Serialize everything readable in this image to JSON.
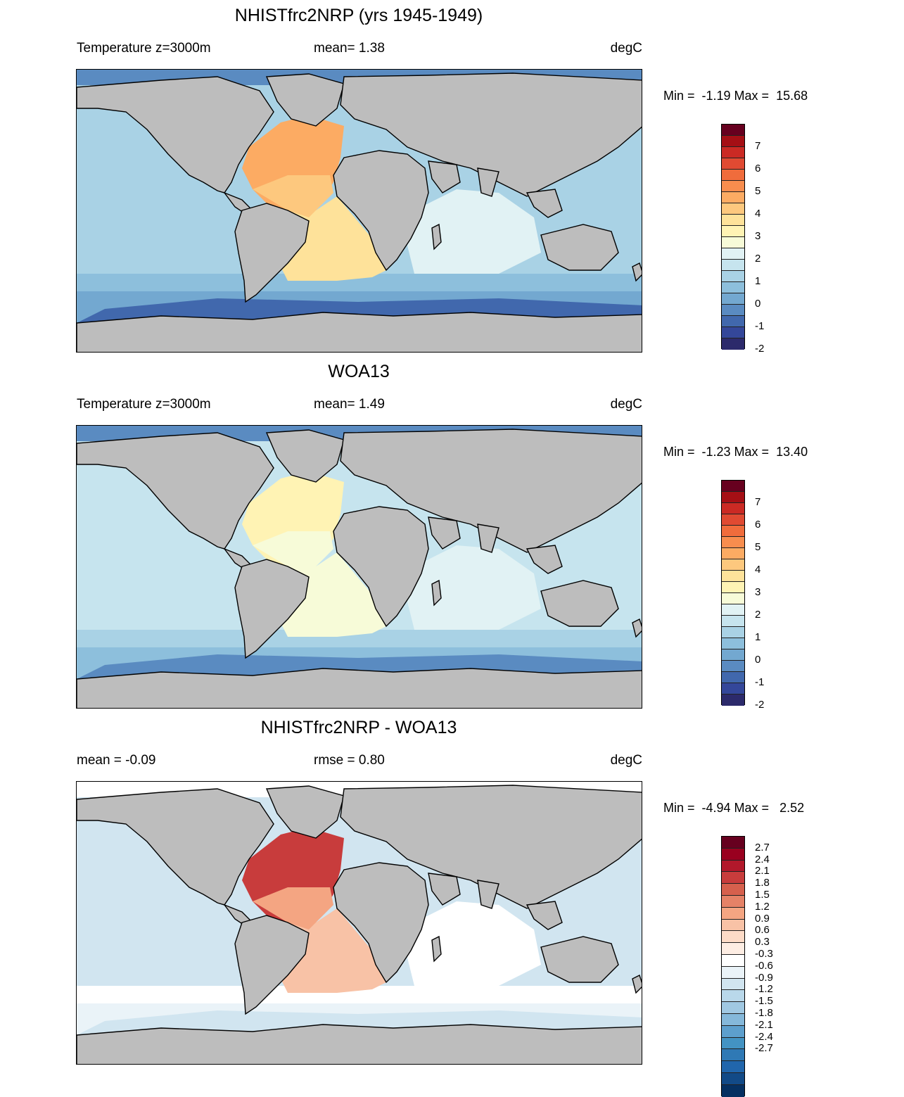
{
  "panels": [
    {
      "title": "NHISTfrc2NRP (yrs 1945-1949)",
      "left_label": "Temperature z=3000m",
      "mid_label": "mean=   1.38",
      "units": "degC",
      "minmax": "Min =  -1.19 Max =  15.68",
      "scheme": "model"
    },
    {
      "title": "WOA13",
      "left_label": "Temperature z=3000m",
      "mid_label": "mean=   1.49",
      "units": "degC",
      "minmax": "Min =  -1.23 Max =  13.40",
      "scheme": "obs"
    },
    {
      "title": "NHISTfrc2NRP - WOA13",
      "left_label": "mean =  -0.09",
      "mid_label": "rmse =   0.80",
      "units": "degC",
      "minmax": "Min =  -4.94 Max =   2.52",
      "scheme": "diff"
    }
  ],
  "colorbars": {
    "temp": {
      "colors": [
        "#67001f",
        "#a50f15",
        "#cb2a24",
        "#e04a32",
        "#f06c3c",
        "#f88d4e",
        "#fcab63",
        "#fdc87e",
        "#fee29a",
        "#fff3b4",
        "#f7fbd8",
        "#e1f2f4",
        "#c6e4ee",
        "#a9d2e5",
        "#8dbfdc",
        "#73a8d0",
        "#5a8bc1",
        "#4168ad",
        "#34479a",
        "#2c2a6b"
      ],
      "labels": [
        "7",
        "6",
        "5",
        "4",
        "3",
        "2",
        "1",
        "0",
        "-1",
        "-2"
      ]
    },
    "diff": {
      "colors": [
        "#67001f",
        "#99001f",
        "#b2182b",
        "#c83c3c",
        "#d6604d",
        "#e58267",
        "#f4a582",
        "#f8c2a6",
        "#fddbc7",
        "#fdede3",
        "#ffffff",
        "#eaf3f8",
        "#d1e5f0",
        "#b9d8ea",
        "#a0c8e2",
        "#85b8da",
        "#5d9fcd",
        "#4393c3",
        "#2f79b5",
        "#2166ac",
        "#124a87",
        "#053061"
      ],
      "labels": [
        "2.7",
        "2.4",
        "2.1",
        "1.8",
        "1.5",
        "1.2",
        "0.9",
        "0.6",
        "0.3",
        "-0.3",
        "-0.6",
        "-0.9",
        "-1.2",
        "-1.5",
        "-1.8",
        "-2.1",
        "-2.4",
        "-2.7"
      ]
    }
  }
}
